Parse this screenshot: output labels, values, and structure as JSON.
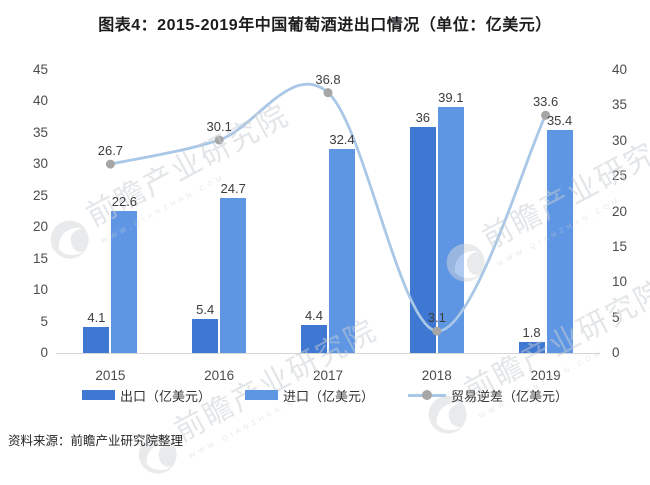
{
  "title": "图表4：2015-2019年中国葡萄酒进出口情况（单位：亿美元）",
  "source_note": "资料来源：前瞻产业研究院整理",
  "watermark": {
    "logo": "qianzhan-swirl-logo",
    "text": "前瞻产业研究院",
    "subtext": "WWW.QIANZHAN.COM"
  },
  "colors": {
    "export_bar": "#3e78d2",
    "import_bar": "#5e96e4",
    "deficit_line": "#a9c7e6",
    "line_marker": "#a6a6a6",
    "axis_text": "#4c4c4c",
    "title_text": "#1d1d20",
    "axis_line": "#d6d6d6"
  },
  "chart_data": {
    "type": "bar",
    "subtype": "grouped-bars-with-line",
    "categories": [
      "2015",
      "2016",
      "2017",
      "2018",
      "2019"
    ],
    "series": [
      {
        "name": "出口（亿美元）",
        "type": "bar",
        "axis": "left",
        "values": [
          4.1,
          5.4,
          4.4,
          36,
          1.8
        ]
      },
      {
        "name": "进口（亿美元）",
        "type": "bar",
        "axis": "left",
        "values": [
          22.6,
          24.7,
          32.4,
          39.1,
          35.4
        ]
      },
      {
        "name": "贸易逆差（亿美元）",
        "type": "line",
        "axis": "right",
        "values": [
          26.7,
          30.1,
          36.8,
          3.1,
          33.6
        ]
      }
    ],
    "left_axis": {
      "min": 0,
      "max": 45,
      "step": 5,
      "ticks": [
        0,
        5,
        10,
        15,
        20,
        25,
        30,
        35,
        40,
        45
      ]
    },
    "right_axis": {
      "min": 0,
      "max": 40,
      "step": 5,
      "ticks": [
        0,
        5,
        10,
        15,
        20,
        25,
        30,
        35,
        40
      ]
    },
    "grid": "off",
    "legend_position": "bottom",
    "title": "图表4：2015-2019年中国葡萄酒进出口情况（单位：亿美元）"
  }
}
